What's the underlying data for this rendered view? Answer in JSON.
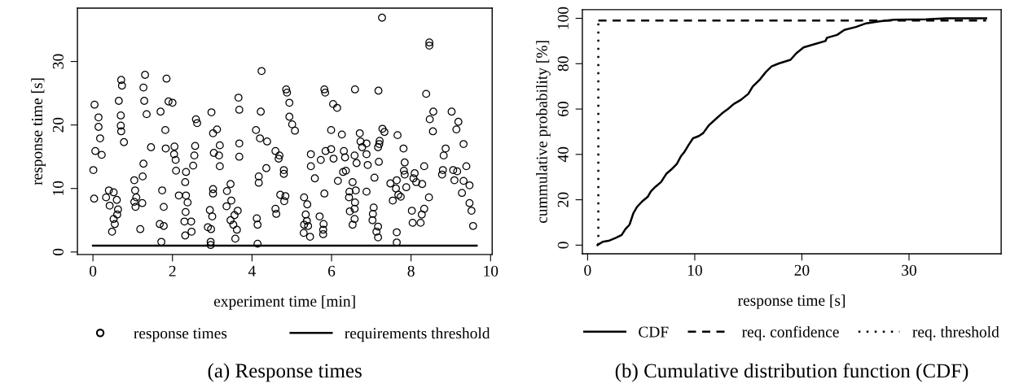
{
  "chart_data": [
    {
      "type": "scatter",
      "title": "(a) Response times",
      "xlabel": "experiment time [min]",
      "ylabel": "response time [s]",
      "xlim": [
        -0.39,
        10.04
      ],
      "ylim": [
        -0.4,
        38.4
      ],
      "xticks": [
        0,
        2,
        4,
        6,
        8,
        10
      ],
      "yticks": [
        0,
        10,
        20,
        30
      ],
      "grid": false,
      "legend": "bottom",
      "series": [
        {
          "name": "response times",
          "marker": "circle",
          "color": "#000000",
          "x": [
            0.04,
            0.14,
            0.14,
            0.18,
            0.06,
            0.22,
            0.01,
            0.03,
            0.33,
            0.4,
            0.42,
            0.52,
            0.6,
            0.63,
            0.61,
            0.52,
            0.55,
            0.48,
            0.71,
            0.73,
            0.65,
            0.7,
            0.7,
            0.71,
            0.78,
            1.31,
            1.27,
            1.29,
            1.35,
            1.7,
            1.85,
            1.9,
            2.0,
            1.82,
            1.46,
            1.83,
            2.05,
            2.04,
            2.08,
            2.09,
            1.27,
            1.25,
            1.04,
            1.06,
            1.04,
            1.09,
            1.24,
            1.07,
            1.19,
            1.74,
            1.78,
            1.68,
            1.78,
            1.72,
            2.16,
            2.34,
            2.32,
            2.34,
            2.38,
            2.33,
            2.3,
            2.47,
            2.48,
            2.32,
            2.57,
            2.55,
            2.52,
            2.59,
            2.62,
            2.98,
            3.02,
            3.04,
            3.02,
            2.94,
            3.0,
            2.89,
            2.97,
            2.96,
            2.96,
            3.12,
            3.19,
            3.17,
            3.19,
            3.02,
            3.66,
            3.68,
            3.68,
            3.68,
            3.46,
            3.37,
            3.48,
            3.36,
            3.64,
            3.56,
            3.46,
            3.53,
            3.62,
            3.58,
            4.24,
            4.22,
            4.1,
            4.2,
            4.38,
            4.36,
            4.17,
            4.17,
            4.12,
            4.14,
            4.14,
            4.86,
            4.88,
            4.94,
            4.94,
            5.01,
            5.08,
            4.59,
            4.69,
            4.67,
            4.8,
            4.8,
            4.71,
            4.84,
            4.81,
            4.59,
            4.61,
            5.31,
            5.39,
            5.35,
            5.38,
            5.31,
            5.41,
            5.3,
            5.46,
            5.48,
            5.48,
            5.58,
            5.82,
            5.84,
            6.04,
            6.14,
            5.99,
            6.26,
            5.85,
            5.99,
            6.05,
            5.73,
            5.82,
            5.7,
            5.8,
            5.79,
            5.79,
            6.16,
            6.29,
            7.27,
            8.46,
            8.46,
            6.59,
            7.18,
            8.38,
            8.56,
            8.47,
            8.55,
            9.02,
            9.19,
            9.14,
            9.32,
            8.87,
            8.82,
            9.39,
            8.8,
            8.78,
            9.06,
            9.16,
            9.09,
            9.32,
            9.47,
            9.28,
            9.47,
            9.52,
            9.56,
            6.31,
            6.34,
            6.36,
            6.71,
            6.73,
            6.88,
            6.77,
            6.88,
            6.58,
            6.63,
            6.91,
            6.53,
            6.45,
            6.61,
            6.44,
            6.59,
            6.46,
            6.58,
            6.58,
            6.53,
            6.88,
            7.08,
            7.17,
            7.21,
            7.2,
            7.28,
            7.33,
            7.19,
            7.06,
            7.04,
            7.03,
            7.17,
            7.13,
            7.17,
            7.66,
            7.81,
            7.84,
            7.82,
            7.84,
            7.64,
            7.48,
            7.62,
            7.68,
            7.74,
            7.88,
            7.54,
            8.09,
            8.06,
            8.13,
            8.28,
            8.33,
            8.45,
            8.02,
            8.33,
            8.27,
            8.04,
            8.24,
            7.64,
            7.64
          ],
          "values": [
            23.2,
            21.2,
            19.7,
            17.9,
            15.9,
            15.3,
            12.9,
            8.4,
            8.6,
            9.7,
            7.3,
            9.4,
            8.2,
            6.7,
            5.9,
            5.2,
            4.4,
            3.2,
            27.1,
            26.2,
            23.8,
            21.5,
            19.9,
            19.0,
            17.3,
            27.9,
            25.9,
            23.8,
            21.7,
            22.1,
            27.3,
            23.7,
            23.5,
            19.2,
            16.5,
            16.3,
            16.6,
            15.4,
            14.5,
            12.8,
            13.9,
            11.9,
            11.3,
            9.7,
            7.9,
            8.6,
            7.7,
            7.1,
            3.6,
            9.7,
            7.1,
            4.4,
            4.1,
            1.6,
            8.9,
            12.6,
            11.0,
            8.9,
            7.8,
            6.3,
            4.8,
            4.8,
            3.2,
            2.6,
            16.7,
            15.2,
            13.6,
            20.9,
            20.3,
            22.0,
            18.7,
            15.6,
            9.9,
            6.6,
            5.6,
            3.9,
            3.6,
            1.6,
            1.1,
            19.3,
            16.8,
            15.2,
            13.5,
            9.2,
            24.3,
            22.4,
            17.1,
            15.0,
            10.7,
            9.6,
            8.1,
            7.2,
            6.5,
            5.8,
            5.0,
            4.3,
            3.5,
            2.1,
            28.5,
            22.1,
            19.2,
            17.9,
            17.4,
            13.2,
            11.9,
            10.9,
            5.3,
            4.3,
            1.3,
            25.6,
            25.1,
            23.5,
            21.3,
            20.1,
            19.1,
            15.9,
            15.2,
            14.7,
            12.9,
            12.3,
            9.0,
            8.8,
            8.0,
            6.8,
            6.0,
            8.6,
            7.5,
            5.9,
            4.9,
            4.3,
            4.1,
            3.0,
            2.4,
            15.4,
            13.5,
            11.6,
            25.6,
            25.1,
            23.3,
            22.7,
            19.2,
            18.5,
            15.9,
            16.2,
            14.7,
            14.5,
            9.2,
            5.6,
            4.4,
            3.5,
            2.8,
            11.2,
            12.6,
            36.9,
            33.0,
            32.5,
            25.6,
            25.4,
            24.9,
            22.1,
            20.9,
            19.0,
            22.1,
            20.5,
            19.3,
            17.0,
            16.3,
            15.2,
            13.5,
            12.9,
            12.2,
            12.9,
            12.7,
            11.3,
            11.2,
            10.5,
            9.3,
            7.7,
            6.5,
            4.1,
            15.9,
            14.9,
            12.8,
            18.7,
            17.4,
            17.1,
            16.5,
            15.4,
            15.2,
            14.0,
            13.7,
            11.0,
            9.5,
            9.7,
            8.6,
            7.8,
            6.4,
            6.8,
            5.2,
            4.3,
            9.5,
            11.7,
            16.5,
            17.5,
            17.0,
            19.4,
            18.9,
            14.2,
            7.0,
            6.0,
            5.0,
            4.0,
            3.2,
            2.3,
            18.4,
            16.3,
            14.1,
            12.8,
            12.2,
            11.3,
            10.8,
            10.0,
            9.0,
            8.7,
            10.2,
            8.1,
            12.4,
            11.6,
            11.0,
            10.7,
            13.5,
            8.6,
            6.5,
            6.8,
            5.9,
            4.6,
            4.6,
            3.1,
            1.5
          ]
        },
        {
          "name": "requirements threshold",
          "type": "line",
          "line_style": "solid",
          "marker": "none",
          "color": "#000000",
          "x": [
            0,
            9.65
          ],
          "values": [
            1,
            1
          ]
        }
      ]
    },
    {
      "type": "line",
      "title": "(b) Cumulative distribution function (CDF)",
      "xlabel": "response time [s]",
      "ylabel": "cummulative probability [%]",
      "xlim": [
        -0.49,
        38.6
      ],
      "ylim": [
        -3.8,
        103.8
      ],
      "xticks": [
        0,
        10,
        20,
        30
      ],
      "yticks": [
        0,
        20,
        40,
        60,
        80,
        100
      ],
      "grid": false,
      "legend": "bottom",
      "series": [
        {
          "name": "CDF",
          "line_style": "solid",
          "marker": "none",
          "color": "#000000",
          "x": [
            0.92,
            1.41,
            1.96,
            2.64,
            3.18,
            3.53,
            3.91,
            4.27,
            4.62,
            5.08,
            5.63,
            5.9,
            6.3,
            6.85,
            7.34,
            7.8,
            8.34,
            8.7,
            9.02,
            9.43,
            9.84,
            10.38,
            10.79,
            11.33,
            12.01,
            12.55,
            13.1,
            13.64,
            14.32,
            15.0,
            15.41,
            16.09,
            16.63,
            17.17,
            17.85,
            18.94,
            19.48,
            20.16,
            21.25,
            22.2,
            22.34,
            23.29,
            23.97,
            25.05,
            26.0,
            27.23,
            28.59,
            31.58,
            33.48,
            37.2
          ],
          "values": [
            0,
            1.5,
            1.9,
            3.2,
            4.5,
            7.1,
            9.0,
            14.1,
            16.9,
            19.2,
            21.4,
            23.7,
            25.6,
            27.8,
            31.4,
            33.3,
            35.9,
            39.1,
            41.0,
            44.2,
            47.1,
            48.1,
            49.4,
            52.9,
            55.8,
            58.1,
            60.0,
            62.2,
            64.1,
            66.7,
            69.9,
            73.1,
            76.3,
            78.8,
            80.1,
            81.7,
            84.6,
            87.2,
            88.7,
            90.0,
            91.4,
            92.7,
            94.9,
            96.2,
            97.8,
            98.7,
            99.4,
            99.6,
            100,
            100
          ]
        },
        {
          "name": "req. confidence",
          "line_style": "dashed",
          "marker": "none",
          "color": "#000000",
          "x": [
            1,
            37.2
          ],
          "values": [
            99,
            99
          ]
        },
        {
          "name": "req. threshold",
          "line_style": "dotted",
          "marker": "none",
          "color": "#000000",
          "x": [
            1,
            1
          ],
          "values": [
            0,
            99
          ]
        }
      ]
    }
  ]
}
